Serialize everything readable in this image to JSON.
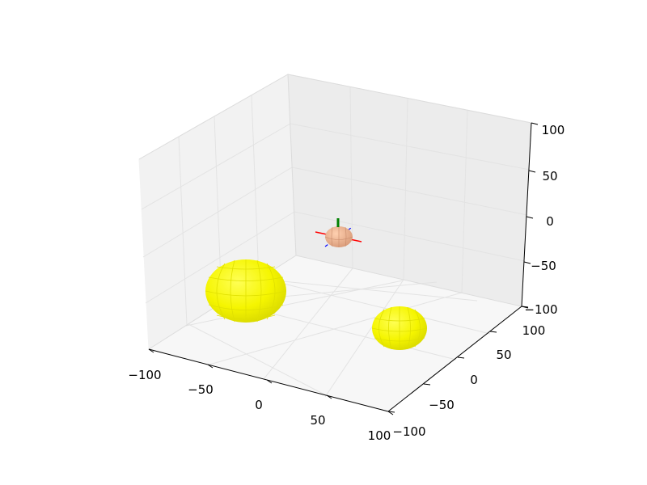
{
  "chart_data": {
    "type": "scatter3d",
    "title": "",
    "xlabel": "",
    "ylabel": "",
    "zlabel": "",
    "xlim": [
      -100,
      100
    ],
    "ylim": [
      -100,
      100
    ],
    "zlim": [
      -100,
      100
    ],
    "grid": true,
    "x_ticks": [
      "−100",
      "−50",
      "0",
      "50",
      "100"
    ],
    "y_ticks": [
      "−100",
      "−50",
      "0",
      "50",
      "100"
    ],
    "z_ticks": [
      "−100",
      "−50",
      "0",
      "50",
      "100"
    ],
    "objects": [
      {
        "name": "",
        "shape": "sphere",
        "color": "#ffff00"
      },
      {
        "name": "",
        "shape": "sphere",
        "color": "#ffff00"
      },
      {
        "name": "",
        "shape": "sphere",
        "color": "#f5b890"
      }
    ],
    "origin_axes_colors": {
      "x": "#ff0000",
      "y": "#0000ff",
      "z": "#008000"
    }
  }
}
